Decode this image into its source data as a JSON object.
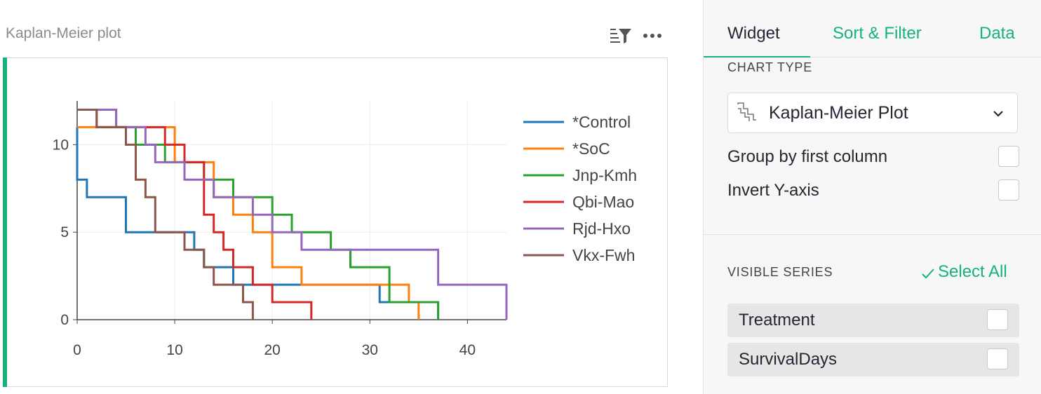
{
  "widget": {
    "title": "Kaplan-Meier plot",
    "filter_icon": "sort-filter-icon",
    "more_icon": "more-options-icon"
  },
  "colors": {
    "accent": "#16b378",
    "control": "#1f77b4",
    "soc": "#ff7f0e",
    "jnp_kmh": "#2ca02c",
    "qbi_mao": "#d62728",
    "rjd_hxo": "#9467bd",
    "vkx_fwh": "#8c564b"
  },
  "chart_data": {
    "type": "line",
    "step": true,
    "title": "",
    "xlabel": "",
    "ylabel": "",
    "xlim": [
      0,
      44
    ],
    "ylim": [
      0,
      12.5
    ],
    "xticks": [
      0,
      10,
      20,
      30,
      40
    ],
    "yticks": [
      0,
      5,
      10
    ],
    "grid": true,
    "legend_position": "right",
    "series": [
      {
        "name": "*Control",
        "color": "#1f77b4",
        "points": [
          [
            0,
            11
          ],
          [
            0,
            8
          ],
          [
            1,
            8
          ],
          [
            1,
            7
          ],
          [
            5,
            7
          ],
          [
            5,
            5
          ],
          [
            12,
            5
          ],
          [
            12,
            4
          ],
          [
            13,
            4
          ],
          [
            13,
            3
          ],
          [
            16,
            3
          ],
          [
            16,
            2
          ],
          [
            31,
            2
          ],
          [
            31,
            1
          ],
          [
            37,
            1
          ],
          [
            37,
            0
          ]
        ]
      },
      {
        "name": "*SoC",
        "color": "#ff7f0e",
        "points": [
          [
            0,
            11
          ],
          [
            10,
            11
          ],
          [
            10,
            9
          ],
          [
            14,
            9
          ],
          [
            14,
            7
          ],
          [
            16,
            7
          ],
          [
            16,
            6
          ],
          [
            18,
            6
          ],
          [
            18,
            5
          ],
          [
            20,
            5
          ],
          [
            20,
            3
          ],
          [
            23,
            3
          ],
          [
            23,
            2
          ],
          [
            34,
            2
          ],
          [
            34,
            1
          ],
          [
            35,
            1
          ],
          [
            35,
            0
          ]
        ]
      },
      {
        "name": "Jnp-Kmh",
        "color": "#2ca02c",
        "points": [
          [
            0,
            12
          ],
          [
            4,
            12
          ],
          [
            4,
            11
          ],
          [
            6,
            11
          ],
          [
            6,
            10
          ],
          [
            9,
            10
          ],
          [
            9,
            9
          ],
          [
            13,
            9
          ],
          [
            13,
            8
          ],
          [
            16,
            8
          ],
          [
            16,
            7
          ],
          [
            20,
            7
          ],
          [
            20,
            6
          ],
          [
            22,
            6
          ],
          [
            22,
            5
          ],
          [
            26,
            5
          ],
          [
            26,
            4
          ],
          [
            28,
            4
          ],
          [
            28,
            3
          ],
          [
            32,
            3
          ],
          [
            32,
            1
          ],
          [
            37,
            1
          ],
          [
            37,
            0
          ]
        ]
      },
      {
        "name": "Qbi-Mao",
        "color": "#d62728",
        "points": [
          [
            0,
            12
          ],
          [
            2,
            12
          ],
          [
            2,
            11
          ],
          [
            9,
            11
          ],
          [
            9,
            10
          ],
          [
            11,
            10
          ],
          [
            11,
            9
          ],
          [
            13,
            9
          ],
          [
            13,
            6
          ],
          [
            14,
            6
          ],
          [
            14,
            5
          ],
          [
            15,
            5
          ],
          [
            15,
            4
          ],
          [
            16,
            4
          ],
          [
            16,
            3
          ],
          [
            18,
            3
          ],
          [
            18,
            2
          ],
          [
            20,
            2
          ],
          [
            20,
            1
          ],
          [
            24,
            1
          ],
          [
            24,
            0
          ]
        ]
      },
      {
        "name": "Rjd-Hxo",
        "color": "#9467bd",
        "points": [
          [
            0,
            12
          ],
          [
            4,
            12
          ],
          [
            4,
            11
          ],
          [
            7,
            11
          ],
          [
            7,
            10
          ],
          [
            8,
            10
          ],
          [
            8,
            9
          ],
          [
            11,
            9
          ],
          [
            11,
            8
          ],
          [
            14,
            8
          ],
          [
            14,
            7
          ],
          [
            18,
            7
          ],
          [
            18,
            6
          ],
          [
            20,
            6
          ],
          [
            20,
            5
          ],
          [
            23,
            5
          ],
          [
            23,
            4
          ],
          [
            37,
            4
          ],
          [
            37,
            2
          ],
          [
            44,
            2
          ],
          [
            44,
            0
          ]
        ]
      },
      {
        "name": "Vkx-Fwh",
        "color": "#8c564b",
        "points": [
          [
            0,
            12
          ],
          [
            2,
            12
          ],
          [
            2,
            11
          ],
          [
            5,
            11
          ],
          [
            5,
            10
          ],
          [
            6,
            10
          ],
          [
            6,
            8
          ],
          [
            7,
            8
          ],
          [
            7,
            7
          ],
          [
            8,
            7
          ],
          [
            8,
            5
          ],
          [
            11,
            5
          ],
          [
            11,
            4
          ],
          [
            13,
            4
          ],
          [
            13,
            3
          ],
          [
            14,
            3
          ],
          [
            14,
            2
          ],
          [
            17,
            2
          ],
          [
            17,
            1
          ],
          [
            18,
            1
          ],
          [
            18,
            0
          ]
        ]
      }
    ]
  },
  "panel": {
    "tabs": [
      {
        "label": "Widget"
      },
      {
        "label": "Sort & Filter"
      },
      {
        "label": "Data"
      }
    ],
    "chart_type_label": "CHART TYPE",
    "chart_type_value": "Kaplan-Meier Plot",
    "group_by_label": "Group by first column",
    "invert_y_label": "Invert Y-axis",
    "visible_series_label": "VISIBLE SERIES",
    "select_all_label": "Select All",
    "series_options": [
      {
        "label": "Treatment"
      },
      {
        "label": "SurvivalDays"
      }
    ]
  }
}
